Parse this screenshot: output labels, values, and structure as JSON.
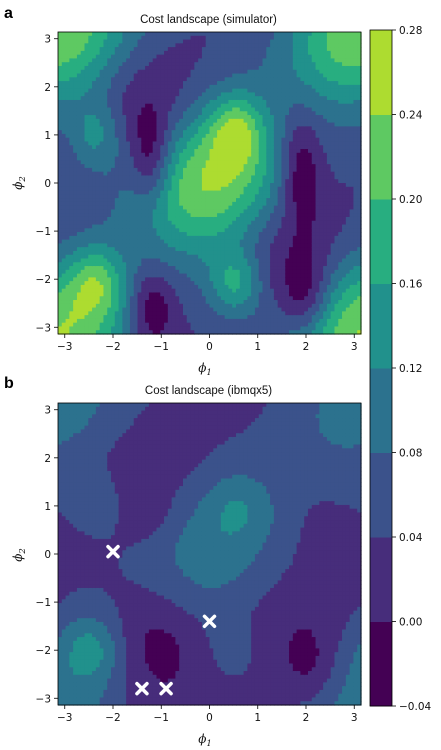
{
  "chart_data": [
    {
      "panel_letter": "a",
      "type": "heatmap",
      "subtype": "filled-contour",
      "title": "Cost landscape (simulator)",
      "xlabel": "ϕ",
      "xlabel_sub": "1",
      "ylabel": "ϕ",
      "ylabel_sub": "2",
      "xlim": [
        -3.14,
        3.14
      ],
      "ylim": [
        -3.14,
        3.14
      ],
      "xticks": [
        -3,
        -2,
        -1,
        0,
        1,
        2,
        3
      ],
      "yticks": [
        -3,
        -2,
        -1,
        0,
        1,
        2,
        3
      ],
      "xtick_labels": [
        "−3",
        "−2",
        "−1",
        "0",
        "1",
        "2",
        "3"
      ],
      "ytick_labels": [
        "−3",
        "−2",
        "−1",
        "0",
        "1",
        "2",
        "3"
      ],
      "z_model": {
        "offset": 0.1,
        "cos_x_cos_y": 0.1,
        "sin_x_sin_y": 0.04,
        "cos_2x": 0.02,
        "cos_2y": 0.02,
        "bumps": [
          {
            "x": -2.35,
            "y": 1.0,
            "amp": 0.1,
            "sx": 0.4,
            "sy": 0.55
          },
          {
            "x": 0.55,
            "y": 1.1,
            "amp": 0.12,
            "sx": 0.4,
            "sy": 0.55
          },
          {
            "x": -2.35,
            "y": -2.05,
            "amp": 0.1,
            "sx": 0.4,
            "sy": 0.5
          },
          {
            "x": 0.55,
            "y": -2.1,
            "amp": 0.13,
            "sx": 0.4,
            "sy": 0.5
          },
          {
            "x": -1.2,
            "y": 0.5,
            "amp": -0.1,
            "sx": 0.3,
            "sy": 0.7
          },
          {
            "x": -1.2,
            "y": -2.6,
            "amp": -0.1,
            "sx": 0.35,
            "sy": 0.6
          },
          {
            "x": 1.9,
            "y": 0.3,
            "amp": -0.1,
            "sx": 0.3,
            "sy": 0.8
          },
          {
            "x": 2.0,
            "y": -2.4,
            "amp": -0.09,
            "sx": 0.35,
            "sy": 0.6
          }
        ]
      },
      "markers": []
    },
    {
      "panel_letter": "b",
      "type": "heatmap",
      "subtype": "filled-contour",
      "title": "Cost landscape (ibmqx5)",
      "xlabel": "ϕ",
      "xlabel_sub": "1",
      "ylabel": "ϕ",
      "ylabel_sub": "2",
      "xlim": [
        -3.14,
        3.14
      ],
      "ylim": [
        -3.14,
        3.14
      ],
      "xticks": [
        -3,
        -2,
        -1,
        0,
        1,
        2,
        3
      ],
      "yticks": [
        -3,
        -2,
        -1,
        0,
        1,
        2,
        3
      ],
      "xtick_labels": [
        "−3",
        "−2",
        "−1",
        "0",
        "1",
        "2",
        "3"
      ],
      "ytick_labels": [
        "−3",
        "−2",
        "−1",
        "0",
        "1",
        "2",
        "3"
      ],
      "z_model": {
        "offset": 0.05,
        "cos_x_cos_y": 0.035,
        "sin_x_sin_y": 0.02,
        "cos_2x": 0.008,
        "cos_2y": 0.008,
        "bumps": [
          {
            "x": -2.3,
            "y": 1.1,
            "amp": 0.04,
            "sx": 0.45,
            "sy": 0.5
          },
          {
            "x": 0.6,
            "y": 1.0,
            "amp": 0.05,
            "sx": 0.5,
            "sy": 0.55
          },
          {
            "x": -2.45,
            "y": -1.95,
            "amp": 0.08,
            "sx": 0.45,
            "sy": 0.5
          },
          {
            "x": 0.5,
            "y": -2.0,
            "amp": 0.03,
            "sx": 0.45,
            "sy": 0.5
          },
          {
            "x": -1.1,
            "y": -1.9,
            "amp": -0.06,
            "sx": 0.7,
            "sy": 0.9
          },
          {
            "x": -1.3,
            "y": 0.9,
            "amp": -0.03,
            "sx": 0.3,
            "sy": 0.4
          },
          {
            "x": 2.1,
            "y": -2.4,
            "amp": -0.05,
            "sx": 0.4,
            "sy": 0.6
          },
          {
            "x": 2.3,
            "y": 0.2,
            "amp": -0.02,
            "sx": 0.3,
            "sy": 0.6
          }
        ]
      },
      "markers": [
        {
          "x": -2.0,
          "y": 0.05
        },
        {
          "x": 0.0,
          "y": -1.4
        },
        {
          "x": -1.4,
          "y": -2.8
        },
        {
          "x": -0.9,
          "y": -2.8
        }
      ]
    }
  ],
  "colorbar": {
    "levels": [
      -0.04,
      0.0,
      0.04,
      0.08,
      0.12,
      0.16,
      0.2,
      0.24,
      0.28
    ],
    "tick_labels": [
      "−0.04",
      "0.00",
      "0.04",
      "0.08",
      "0.12",
      "0.16",
      "0.20",
      "0.24",
      "0.28"
    ],
    "colors": [
      "#440154",
      "#472d7b",
      "#3b528b",
      "#2c728e",
      "#21918c",
      "#28ae80",
      "#5ec962",
      "#addc30",
      "#fde725"
    ],
    "marker_color": "#ffffff"
  }
}
